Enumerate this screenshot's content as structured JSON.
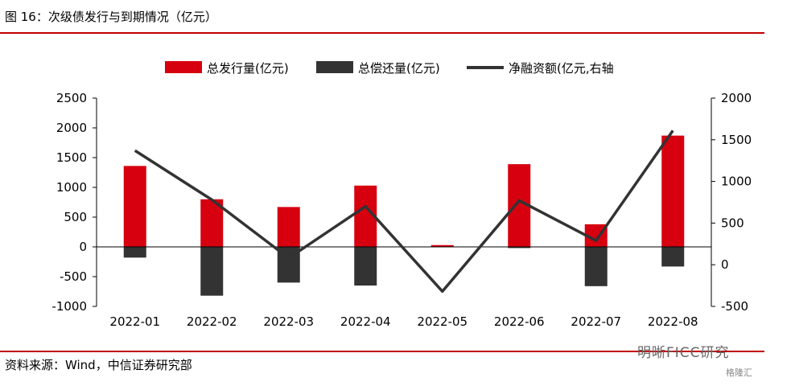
{
  "header": {
    "title": "图 16：次级债发行与到期情况（亿元）"
  },
  "footer": {
    "source": "资料来源：Wind，中信证券研究部"
  },
  "watermark": {
    "text": "明晰FICC研究",
    "sub": "格隆汇"
  },
  "colors": {
    "issuance": "#d7000f",
    "repayment": "#333333",
    "net": "#333333",
    "rule": "#c00000"
  },
  "chart_data": {
    "type": "bar",
    "categories": [
      "2022-01",
      "2022-02",
      "2022-03",
      "2022-04",
      "2022-05",
      "2022-06",
      "2022-07",
      "2022-08"
    ],
    "series": [
      {
        "name": "总发行量(亿元)",
        "type": "bar",
        "axis": "left",
        "values": [
          1360,
          800,
          670,
          1030,
          30,
          1390,
          380,
          1870
        ]
      },
      {
        "name": "总偿还量(亿元)",
        "type": "bar",
        "axis": "left",
        "values": [
          -180,
          -820,
          -600,
          -650,
          0,
          -20,
          -660,
          -330
        ]
      },
      {
        "name": "净融资额(亿元,右轴",
        "type": "line",
        "axis": "right",
        "values": [
          1370,
          780,
          80,
          700,
          -320,
          770,
          290,
          1610
        ]
      }
    ],
    "left_axis": {
      "ylim": [
        -1000,
        2500
      ],
      "ticks": [
        -1000,
        -500,
        0,
        500,
        1000,
        1500,
        2000,
        2500
      ]
    },
    "right_axis": {
      "ylim": [
        -500,
        2000
      ],
      "ticks": [
        -500,
        0,
        500,
        1000,
        1500,
        2000
      ]
    },
    "legend": "top-center",
    "grid": false
  }
}
